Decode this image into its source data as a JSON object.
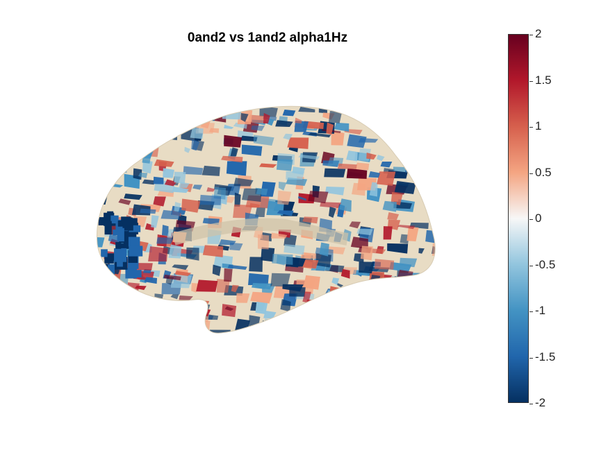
{
  "figure": {
    "title": "0and2 vs 1and2 alpha1Hz"
  },
  "colorbar": {
    "colormap": [
      "#053061",
      "#2166ac",
      "#4393c3",
      "#92c5de",
      "#f7f7f7",
      "#f4a582",
      "#d6604d",
      "#b2182b",
      "#67001f"
    ],
    "range": [
      -2,
      2
    ],
    "tick_labels": [
      "2",
      "1.5",
      "1",
      "0.5",
      "0",
      "-0.5",
      "-1",
      "-1.5",
      "-2"
    ]
  },
  "brain": {
    "view": "lateral left hemisphere cortical surface",
    "base_color": "#e8dcc4"
  }
}
